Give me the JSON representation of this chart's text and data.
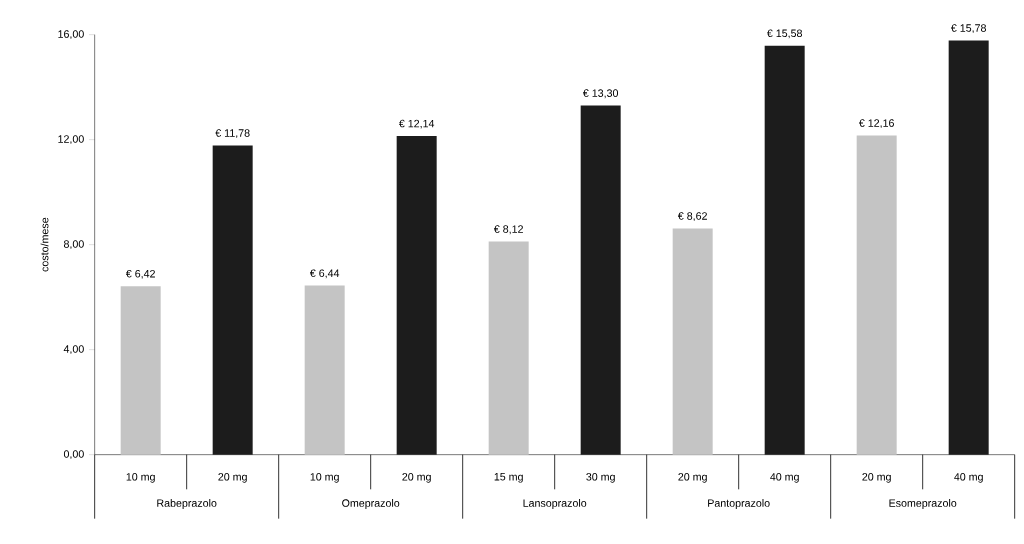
{
  "chart_data": {
    "type": "bar",
    "ylabel": "costo/mese",
    "categories": [
      "10 mg",
      "20 mg",
      "10 mg",
      "20 mg",
      "15 mg",
      "30 mg",
      "20 mg",
      "40 mg",
      "20 mg",
      "40 mg"
    ],
    "values": [
      6.42,
      11.78,
      6.44,
      12.14,
      8.12,
      13.3,
      8.62,
      15.58,
      12.16,
      15.78
    ],
    "colors": [
      "#c4c4c4",
      "#1c1c1c",
      "#c4c4c4",
      "#1c1c1c",
      "#c4c4c4",
      "#1c1c1c",
      "#c4c4c4",
      "#1c1c1c",
      "#c4c4c4",
      "#1c1c1c"
    ],
    "value_labels": [
      "€ 6,42",
      "€ 11,78",
      "€ 6,44",
      "€ 12,14",
      "€ 8,12",
      "€ 13,30",
      "€ 8,62",
      "€ 15,58",
      "€ 12,16",
      "€ 15,78"
    ],
    "ylim": [
      0,
      16
    ],
    "yticks": [
      {
        "value": 0,
        "label": "0,00"
      },
      {
        "value": 4,
        "label": "4,00"
      },
      {
        "value": 8,
        "label": "8,00"
      },
      {
        "value": 12,
        "label": "12,00"
      },
      {
        "value": 16,
        "label": "16,00"
      }
    ],
    "annotations": [
      "Rabeprazolo",
      "Omeprazolo",
      "Lansoprazolo",
      "Pantoprazolo",
      "Esomeprazolo"
    ]
  }
}
